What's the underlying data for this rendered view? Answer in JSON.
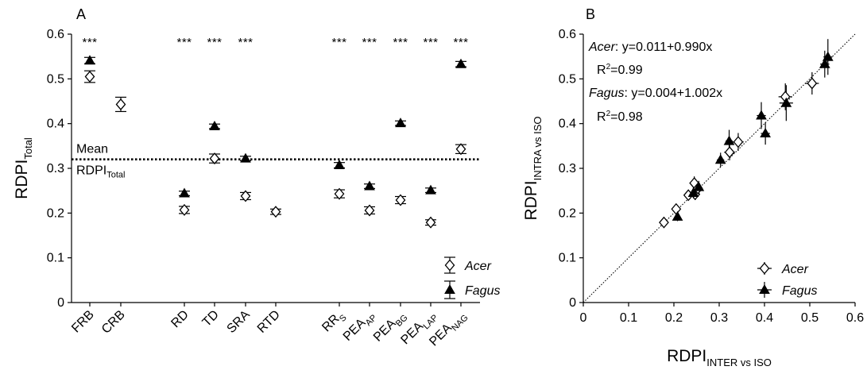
{
  "chart_data": [
    {
      "type": "scatter",
      "panel": "A",
      "ylabel": "RDPI",
      "ylabel_sub": "Total",
      "ylim": [
        0,
        0.6
      ],
      "yticks": [
        "0",
        "0.1",
        "0.2",
        "0.3",
        "0.4",
        "0.5",
        "0.6"
      ],
      "categories": [
        {
          "main": "FRB",
          "sub": ""
        },
        {
          "main": "CRB",
          "sub": ""
        },
        {
          "main": "RD",
          "sub": ""
        },
        {
          "main": "TD",
          "sub": ""
        },
        {
          "main": "SRA",
          "sub": ""
        },
        {
          "main": "RTD",
          "sub": ""
        },
        {
          "main": "RR",
          "sub": "S"
        },
        {
          "main": "PEA",
          "sub": "AP"
        },
        {
          "main": "PEA",
          "sub": "BG"
        },
        {
          "main": "PEA",
          "sub": "LAP"
        },
        {
          "main": "PEA",
          "sub": "NAG"
        }
      ],
      "series": [
        {
          "name": "Acer",
          "marker": "open-diamond",
          "values": [
            0.505,
            0.443,
            0.207,
            0.322,
            0.238,
            0.203,
            0.243,
            0.206,
            0.229,
            0.179,
            0.343
          ],
          "errors": [
            0.013,
            0.016,
            0.008,
            0.01,
            0.008,
            0.006,
            0.009,
            0.008,
            0.008,
            0.006,
            0.01
          ]
        },
        {
          "name": "Fagus",
          "marker": "filled-triangle",
          "values": [
            0.541,
            null,
            0.244,
            0.394,
            0.322,
            null,
            0.307,
            0.26,
            0.401,
            0.251,
            0.533
          ],
          "errors": [
            0.007,
            null,
            0.005,
            0.005,
            0.005,
            null,
            0.006,
            0.005,
            0.005,
            0.005,
            0.006
          ]
        }
      ],
      "significance": [
        "***",
        "",
        "***",
        "***",
        "***",
        "",
        "***",
        "***",
        "***",
        "***",
        "***"
      ],
      "mean_line": {
        "value": 0.32,
        "label_top": "Mean",
        "label_bottom": "RDPI",
        "label_bottom_sub": "Total"
      },
      "legend_position": "bottom-right"
    },
    {
      "type": "scatter",
      "panel": "B",
      "xlabel": "RDPI",
      "xlabel_sub": "INTER vs ISO",
      "ylabel": "RDPI",
      "ylabel_sub": "INTRA vs ISO",
      "xlim": [
        0,
        0.6
      ],
      "ylim": [
        0,
        0.6
      ],
      "xticks": [
        "0",
        "0.1",
        "0.2",
        "0.3",
        "0.4",
        "0.5",
        "0.6"
      ],
      "yticks": [
        "0",
        "0.1",
        "0.2",
        "0.3",
        "0.4",
        "0.5",
        "0.6"
      ],
      "identity_line": true,
      "annotations": [
        {
          "species": "Acer",
          "equation": ": y=0.011+0.990x",
          "r2_label": "R",
          "r2_value": "=0.99"
        },
        {
          "species": "Fagus",
          "equation": ": y=0.004+1.002x",
          "r2_label": "R",
          "r2_value": "=0.98"
        }
      ],
      "series": [
        {
          "name": "Acer",
          "marker": "open-diamond",
          "points": [
            {
              "x": 0.178,
              "y": 0.179,
              "xe": 0.006,
              "ye": 0.008
            },
            {
              "x": 0.205,
              "y": 0.209,
              "xe": 0.008,
              "ye": 0.01
            },
            {
              "x": 0.232,
              "y": 0.24,
              "xe": 0.009,
              "ye": 0.012
            },
            {
              "x": 0.245,
              "y": 0.267,
              "xe": 0.01,
              "ye": 0.015
            },
            {
              "x": 0.247,
              "y": 0.242,
              "xe": 0.01,
              "ye": 0.013
            },
            {
              "x": 0.253,
              "y": 0.255,
              "xe": 0.01,
              "ye": 0.014
            },
            {
              "x": 0.323,
              "y": 0.336,
              "xe": 0.012,
              "ye": 0.018
            },
            {
              "x": 0.342,
              "y": 0.359,
              "xe": 0.012,
              "ye": 0.02
            },
            {
              "x": 0.446,
              "y": 0.46,
              "xe": 0.015,
              "ye": 0.03
            },
            {
              "x": 0.505,
              "y": 0.49,
              "xe": 0.015,
              "ye": 0.025
            }
          ]
        },
        {
          "name": "Fagus",
          "marker": "filled-triangle",
          "points": [
            {
              "x": 0.208,
              "y": 0.192,
              "xe": 0.006,
              "ye": 0.01
            },
            {
              "x": 0.243,
              "y": 0.245,
              "xe": 0.007,
              "ye": 0.012
            },
            {
              "x": 0.255,
              "y": 0.258,
              "xe": 0.007,
              "ye": 0.014
            },
            {
              "x": 0.303,
              "y": 0.319,
              "xe": 0.008,
              "ye": 0.016
            },
            {
              "x": 0.322,
              "y": 0.361,
              "xe": 0.008,
              "ye": 0.025
            },
            {
              "x": 0.393,
              "y": 0.418,
              "xe": 0.01,
              "ye": 0.03
            },
            {
              "x": 0.402,
              "y": 0.378,
              "xe": 0.01,
              "ye": 0.025
            },
            {
              "x": 0.448,
              "y": 0.446,
              "xe": 0.015,
              "ye": 0.04
            },
            {
              "x": 0.533,
              "y": 0.533,
              "xe": 0.01,
              "ye": 0.03
            },
            {
              "x": 0.54,
              "y": 0.549,
              "xe": 0.01,
              "ye": 0.04
            }
          ]
        }
      ],
      "legend_position": "bottom-right"
    }
  ]
}
